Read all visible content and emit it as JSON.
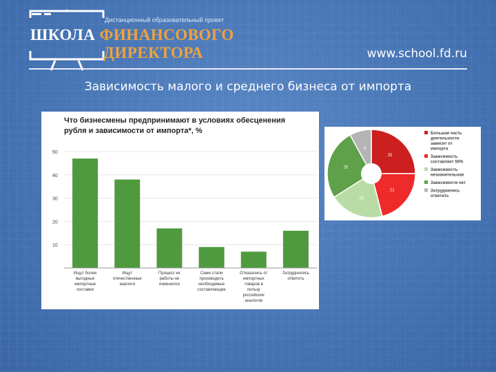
{
  "header": {
    "subtitle": "Дистанционный образовательный проект",
    "school_word": "ШКОЛА",
    "fin_word": "ФИНАНСОВОГО",
    "director_word": "ДИРЕКТОРА",
    "url": "www.school.fd.ru"
  },
  "slide_title": "Зависимость малого и среднего бизнеса от импорта",
  "chart_data": [
    {
      "type": "bar",
      "title_lines": [
        "Что бизнесмены предпринимают в условиях обесценения",
        "рубля и зависимости от импорта*, %"
      ],
      "ylim": [
        0,
        50
      ],
      "yticks": [
        10,
        20,
        30,
        40,
        50
      ],
      "bar_color": "#4f9a3e",
      "categories": [
        [
          "Ищут более",
          "выгодные",
          "импортные",
          "поставки"
        ],
        [
          "Ищут",
          "отечественные",
          "аналоги"
        ],
        [
          "Процесс их",
          "работы не",
          "изменился"
        ],
        [
          "Сами стали",
          "производить",
          "необходимые",
          "составляющие"
        ],
        [
          "Отказались от",
          "импортных",
          "товаров в",
          "пользу",
          "российских",
          "аналогов"
        ],
        [
          "Затруднились",
          "ответить"
        ]
      ],
      "values": [
        47,
        38,
        17,
        9,
        7,
        16
      ]
    },
    {
      "type": "pie",
      "slices": [
        {
          "value": 25,
          "label": "25",
          "color": "#cc1f1f",
          "legend": [
            "Большая часть",
            "деятельности",
            "зависит от",
            "импорта"
          ]
        },
        {
          "value": 21,
          "label": "21",
          "color": "#ee2a2a",
          "legend": [
            "Зависимость",
            "составляет 50%"
          ]
        },
        {
          "value": 20,
          "label": "20",
          "color": "#b9dca6",
          "legend": [
            "Зависимость",
            "незначительная"
          ]
        },
        {
          "value": 26,
          "label": "26",
          "color": "#5fa04a",
          "legend": [
            "Зависимости нет"
          ]
        },
        {
          "value": 8,
          "label": "8",
          "color": "#b4b4b4",
          "legend": [
            "Затруднились",
            "ответить"
          ]
        }
      ]
    }
  ]
}
